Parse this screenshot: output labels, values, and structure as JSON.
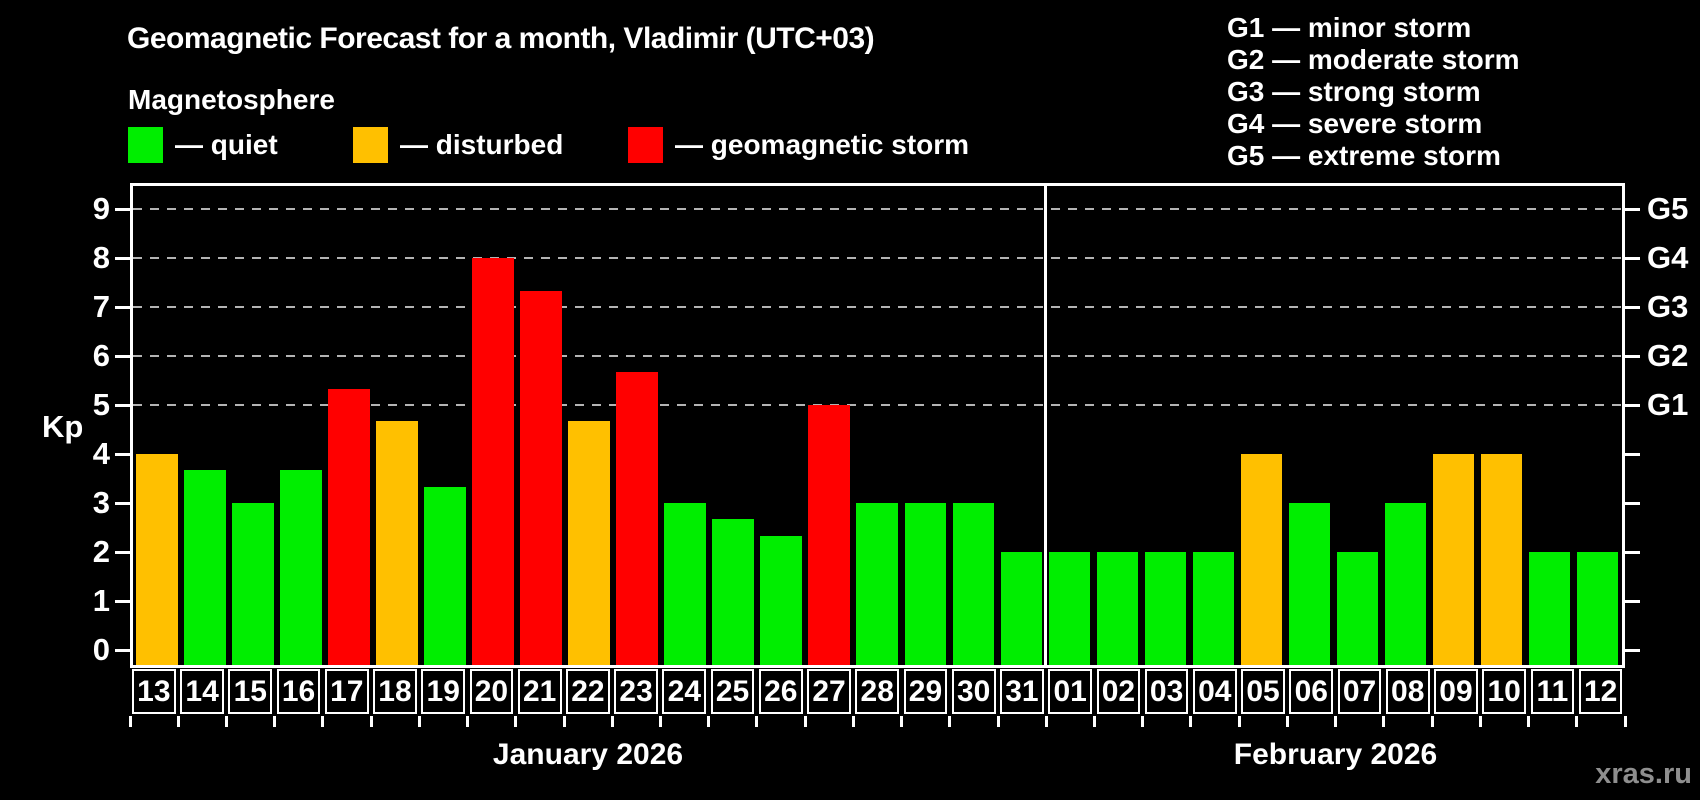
{
  "header": {
    "title": "Geomagnetic Forecast for a month, Vladimir (UTC+03)",
    "subtitle": "Magnetosphere"
  },
  "legend": {
    "items": [
      {
        "status": "quiet",
        "label": "— quiet",
        "color": "#00ee00"
      },
      {
        "status": "disturbed",
        "label": "— disturbed",
        "color": "#ffc000"
      },
      {
        "status": "storm",
        "label": "— geomagnetic storm",
        "color": "#ff0000"
      }
    ]
  },
  "g_legend": {
    "items": [
      {
        "label": "G1 — minor storm"
      },
      {
        "label": "G2 — moderate storm"
      },
      {
        "label": "G3 — strong storm"
      },
      {
        "label": "G4 — severe storm"
      },
      {
        "label": "G5 — extreme storm"
      }
    ]
  },
  "y_axis": {
    "label": "Kp",
    "ticks": [
      0,
      1,
      2,
      3,
      4,
      5,
      6,
      7,
      8,
      9
    ]
  },
  "right_axis": {
    "labels": [
      {
        "kp": 5,
        "label": "G1"
      },
      {
        "kp": 6,
        "label": "G2"
      },
      {
        "kp": 7,
        "label": "G3"
      },
      {
        "kp": 8,
        "label": "G4"
      },
      {
        "kp": 9,
        "label": "G5"
      }
    ]
  },
  "watermark": "xras.ru",
  "chart_data": {
    "type": "bar",
    "title": "Geomagnetic Forecast for a month, Vladimir (UTC+03)",
    "subtitle": "Magnetosphere",
    "ylabel": "Kp",
    "ylim": [
      0,
      9
    ],
    "grid": "dashed horizontal at Kp 5-9",
    "gridlines": [
      5,
      6,
      7,
      8,
      9
    ],
    "legend_position": "top-left",
    "groups": [
      {
        "label": "January 2026",
        "days": [
          {
            "day": "13",
            "kp": 4.0,
            "status": "disturbed"
          },
          {
            "day": "14",
            "kp": 3.67,
            "status": "quiet"
          },
          {
            "day": "15",
            "kp": 3.0,
            "status": "quiet"
          },
          {
            "day": "16",
            "kp": 3.67,
            "status": "quiet"
          },
          {
            "day": "17",
            "kp": 5.33,
            "status": "storm"
          },
          {
            "day": "18",
            "kp": 4.67,
            "status": "disturbed"
          },
          {
            "day": "19",
            "kp": 3.33,
            "status": "quiet"
          },
          {
            "day": "20",
            "kp": 8.0,
            "status": "storm"
          },
          {
            "day": "21",
            "kp": 7.33,
            "status": "storm"
          },
          {
            "day": "22",
            "kp": 4.67,
            "status": "disturbed"
          },
          {
            "day": "23",
            "kp": 5.67,
            "status": "storm"
          },
          {
            "day": "24",
            "kp": 3.0,
            "status": "quiet"
          },
          {
            "day": "25",
            "kp": 2.67,
            "status": "quiet"
          },
          {
            "day": "26",
            "kp": 2.33,
            "status": "quiet"
          },
          {
            "day": "27",
            "kp": 5.0,
            "status": "storm"
          },
          {
            "day": "28",
            "kp": 3.0,
            "status": "quiet"
          },
          {
            "day": "29",
            "kp": 3.0,
            "status": "quiet"
          },
          {
            "day": "30",
            "kp": 3.0,
            "status": "quiet"
          },
          {
            "day": "31",
            "kp": 2.0,
            "status": "quiet"
          }
        ]
      },
      {
        "label": "February 2026",
        "days": [
          {
            "day": "01",
            "kp": 2.0,
            "status": "quiet"
          },
          {
            "day": "02",
            "kp": 2.0,
            "status": "quiet"
          },
          {
            "day": "03",
            "kp": 2.0,
            "status": "quiet"
          },
          {
            "day": "04",
            "kp": 2.0,
            "status": "quiet"
          },
          {
            "day": "05",
            "kp": 4.0,
            "status": "disturbed"
          },
          {
            "day": "06",
            "kp": 3.0,
            "status": "quiet"
          },
          {
            "day": "07",
            "kp": 2.0,
            "status": "quiet"
          },
          {
            "day": "08",
            "kp": 3.0,
            "status": "quiet"
          },
          {
            "day": "09",
            "kp": 4.0,
            "status": "disturbed"
          },
          {
            "day": "10",
            "kp": 4.0,
            "status": "disturbed"
          },
          {
            "day": "11",
            "kp": 2.0,
            "status": "quiet"
          },
          {
            "day": "12",
            "kp": 2.0,
            "status": "quiet"
          }
        ]
      }
    ]
  }
}
